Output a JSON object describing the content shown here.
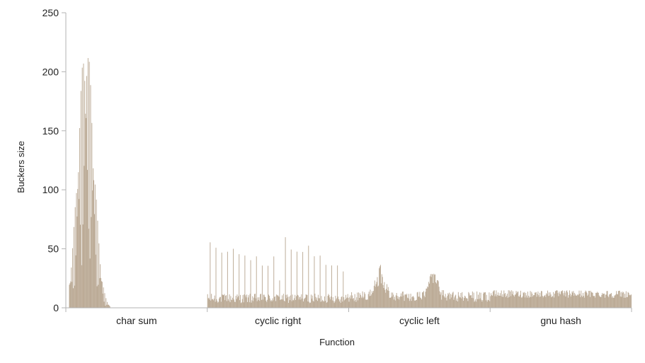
{
  "chart_data": {
    "type": "bar",
    "title": "",
    "xlabel": "Function",
    "ylabel": "Buckers size",
    "ylim": [
      0,
      250
    ],
    "yticks": [
      0,
      50,
      100,
      150,
      200,
      250
    ],
    "grid": false,
    "legend": "none",
    "categories": [
      "char sum",
      "cyclic right",
      "cyclic left",
      "gnu hash"
    ],
    "series_color": "#b5a38c",
    "groups": [
      {
        "category": "char sum",
        "profile": "peaked",
        "peak_value": 229,
        "peak_position": 0.14,
        "nonzero_fraction": 0.31,
        "max_value": 229
      },
      {
        "category": "cyclic right",
        "profile": "spiky",
        "typical_value": 8,
        "spike_values": [
          60,
          55,
          52,
          50,
          54,
          48,
          46,
          45,
          44,
          42,
          38,
          52,
          28
        ],
        "max_value": 61
      },
      {
        "category": "cyclic left",
        "profile": "humped",
        "typical_value": 10,
        "hump_values": [
          34,
          32
        ],
        "max_value": 35
      },
      {
        "category": "gnu hash",
        "profile": "uniform",
        "typical_value": 12,
        "max_value": 18
      }
    ]
  }
}
